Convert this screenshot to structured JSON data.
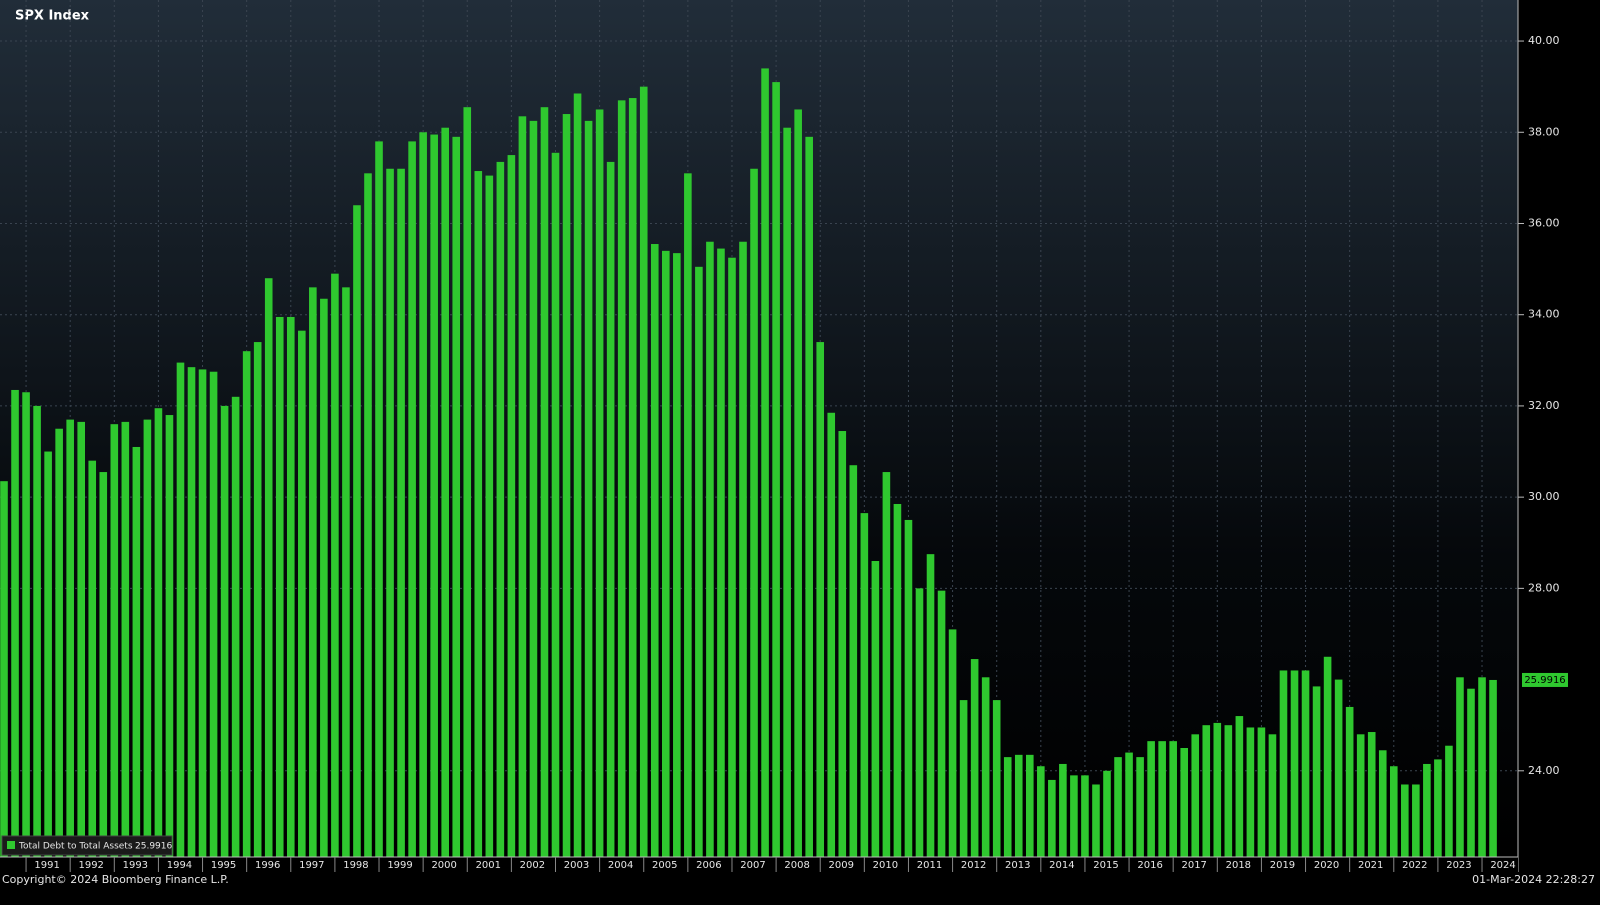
{
  "chart_data": {
    "type": "bar",
    "title": "SPX Index",
    "copyright": "Copyright© 2024 Bloomberg Finance L.P.",
    "timestamp": "01-Mar-2024 22:28:27",
    "categories": [
      null,
      null,
      null,
      "1991",
      null,
      null,
      null,
      "1992",
      null,
      null,
      null,
      "1993",
      null,
      null,
      null,
      "1994",
      null,
      null,
      null,
      "1995",
      null,
      null,
      null,
      "1996",
      null,
      null,
      null,
      "1997",
      null,
      null,
      null,
      "1998",
      null,
      null,
      null,
      "1999",
      null,
      null,
      null,
      "2000",
      null,
      null,
      null,
      "2001",
      null,
      null,
      null,
      "2002",
      null,
      null,
      null,
      "2003",
      null,
      null,
      null,
      "2004",
      null,
      null,
      null,
      "2005",
      null,
      null,
      null,
      "2006",
      null,
      null,
      null,
      "2007",
      null,
      null,
      null,
      "2008",
      null,
      null,
      null,
      "2009",
      null,
      null,
      null,
      "2010",
      null,
      null,
      null,
      "2011",
      null,
      null,
      null,
      "2012",
      null,
      null,
      null,
      "2013",
      null,
      null,
      null,
      "2014",
      null,
      null,
      null,
      "2015",
      null,
      null,
      null,
      "2016",
      null,
      null,
      null,
      "2017",
      null,
      null,
      null,
      "2018",
      null,
      null,
      null,
      "2019",
      null,
      null,
      null,
      "2020",
      null,
      null,
      null,
      "2021",
      null,
      null,
      null,
      "2022",
      null,
      null,
      null,
      "2023",
      null,
      null,
      null,
      "2024"
    ],
    "series": [
      {
        "name": "Total Debt to Total Assets",
        "color": "#2fc82f",
        "values": [
          30.35,
          32.35,
          32.3,
          32.0,
          31.0,
          31.5,
          31.7,
          31.65,
          30.8,
          30.55,
          31.6,
          31.65,
          31.1,
          31.7,
          31.95,
          31.8,
          32.95,
          32.85,
          32.8,
          32.75,
          32.0,
          32.2,
          33.2,
          33.4,
          34.8,
          33.95,
          33.95,
          33.65,
          34.6,
          34.35,
          34.9,
          34.6,
          36.4,
          37.1,
          37.8,
          37.2,
          37.2,
          37.8,
          38.0,
          37.95,
          38.1,
          37.9,
          38.55,
          37.15,
          37.05,
          37.35,
          37.5,
          38.35,
          38.25,
          38.55,
          37.55,
          38.4,
          38.85,
          38.25,
          38.5,
          37.35,
          38.7,
          38.75,
          39.0,
          35.55,
          35.4,
          35.35,
          37.1,
          35.05,
          35.6,
          35.45,
          35.25,
          35.6,
          37.2,
          39.4,
          39.1,
          38.1,
          38.5,
          37.9,
          33.4,
          31.85,
          31.45,
          30.7,
          29.65,
          28.6,
          30.55,
          29.85,
          29.5,
          28.0,
          28.75,
          27.95,
          27.1,
          25.55,
          26.45,
          26.05,
          25.55,
          24.3,
          24.35,
          24.35,
          24.1,
          23.8,
          24.15,
          23.9,
          23.9,
          23.7,
          24.0,
          24.3,
          24.4,
          24.3,
          24.65,
          24.65,
          24.65,
          24.5,
          24.8,
          25.0,
          25.05,
          25.0,
          25.2,
          24.95,
          24.95,
          24.8,
          26.2,
          26.2,
          26.2,
          25.85,
          26.5,
          26.0,
          25.4,
          24.8,
          24.85,
          24.45,
          24.1,
          23.7,
          23.7,
          24.15,
          24.25,
          24.55,
          26.05,
          25.8,
          26.05,
          25.9916
        ]
      }
    ],
    "ylim": [
      22.11,
      40.9
    ],
    "yticks": [
      {
        "value": 24,
        "label": "24.00"
      },
      {
        "value": 28,
        "label": "28.00"
      },
      {
        "value": 30,
        "label": "30.00"
      },
      {
        "value": 32,
        "label": "32.00"
      },
      {
        "value": 34,
        "label": "34.00"
      },
      {
        "value": 36,
        "label": "36.00"
      },
      {
        "value": 38,
        "label": "38.00"
      },
      {
        "value": 40,
        "label": "40.00"
      }
    ],
    "grid": true
  }
}
